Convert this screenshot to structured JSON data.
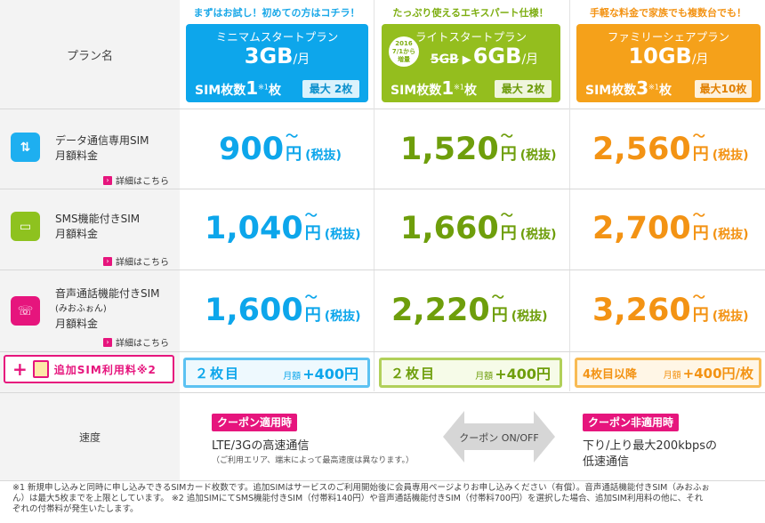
{
  "header": {
    "plan_name_label": "プラン名"
  },
  "plans": [
    {
      "tagline": "まずはお試し！初めての方はコチラ！",
      "title": "ミニマムスタートプラン",
      "data": "3GB",
      "per_month": "/月",
      "sim_label": "SIM枚数",
      "sim_count": "1",
      "sim_note": "※1",
      "sim_unit": "枚",
      "max_label": "最大 2枚",
      "prices": {
        "data": "900",
        "sms": "1,040",
        "voice": "1,600"
      },
      "addsim_count": "２枚目",
      "addsim_fee_prefix": "月額",
      "addsim_fee": "+400円"
    },
    {
      "tagline": "たっぷり使えるエキスパート仕様！",
      "title": "ライトスタートプラン",
      "date_badge": [
        "2016",
        "7/1から",
        "増量"
      ],
      "old_data": "5GB",
      "data": "6GB",
      "per_month": "/月",
      "sim_label": "SIM枚数",
      "sim_count": "1",
      "sim_note": "※1",
      "sim_unit": "枚",
      "max_label": "最大 2枚",
      "prices": {
        "data": "1,520",
        "sms": "1,660",
        "voice": "2,220"
      },
      "addsim_count": "２枚目",
      "addsim_fee_prefix": "月額",
      "addsim_fee": "+400円"
    },
    {
      "tagline": "手軽な料金で家族でも複数台でも！",
      "title": "ファミリーシェアプラン",
      "data": "10GB",
      "per_month": "/月",
      "sim_label": "SIM枚数",
      "sim_count": "3",
      "sim_note": "※1",
      "sim_unit": "枚",
      "max_label": "最大10枚",
      "prices": {
        "data": "2,560",
        "sms": "2,700",
        "voice": "3,260"
      },
      "addsim_count": "4枚目以降",
      "addsim_fee_prefix": "月額",
      "addsim_fee": "+400円/枚"
    }
  ],
  "price_unit": "円",
  "price_tilde": "〜",
  "price_tax": "(税抜)",
  "rows": [
    {
      "name_line1": "データ通信専用SIM",
      "name_line2": "月額料金",
      "name_line3": "",
      "icon": "arrows-updown-icon",
      "detail": "詳細はこちら"
    },
    {
      "name_line1": "SMS機能付きSIM",
      "name_line2": "月額料金",
      "name_line3": "",
      "icon": "message-bubble-icon",
      "detail": "詳細はこちら"
    },
    {
      "name_line1": "音声通話機能付きSIM",
      "name_line2": "(みおふぉん)",
      "name_line3": "月額料金",
      "icon": "phone-call-icon",
      "detail": "詳細はこちら"
    }
  ],
  "addsim": {
    "label": "追加SIM利用料※2"
  },
  "speed": {
    "label": "速度",
    "coupon_on_tag": "クーポン適用時",
    "coupon_on_text": "LTE/3Gの高速通信",
    "coupon_on_note": "（ご利用エリア、端末によって最高速度は異なります。）",
    "toggle_label": "クーポン ON/OFF",
    "coupon_off_tag": "クーポン非適用時",
    "coupon_off_line1": "下り/上り最大200kbpsの",
    "coupon_off_line2": "低速通信"
  },
  "footnote": {
    "line1": "※1 新規申し込みと同時に申し込みできるSIMカード枚数です。追加SIMはサービスのご利用開始後に会員専用ページよりお申し込みください（有償）。音声通話機能付きSIM（みおふぉ",
    "line2": "ん）は最大5枚までを上限としています。 ※2 追加SIMにてSMS機能付きSIM（付帯料140円）や音声通話機能付きSIM（付帯料700円）を選択した場合、追加SIM利用料の他に、それ",
    "line3": "ぞれの付帯料が発生いたします。"
  }
}
